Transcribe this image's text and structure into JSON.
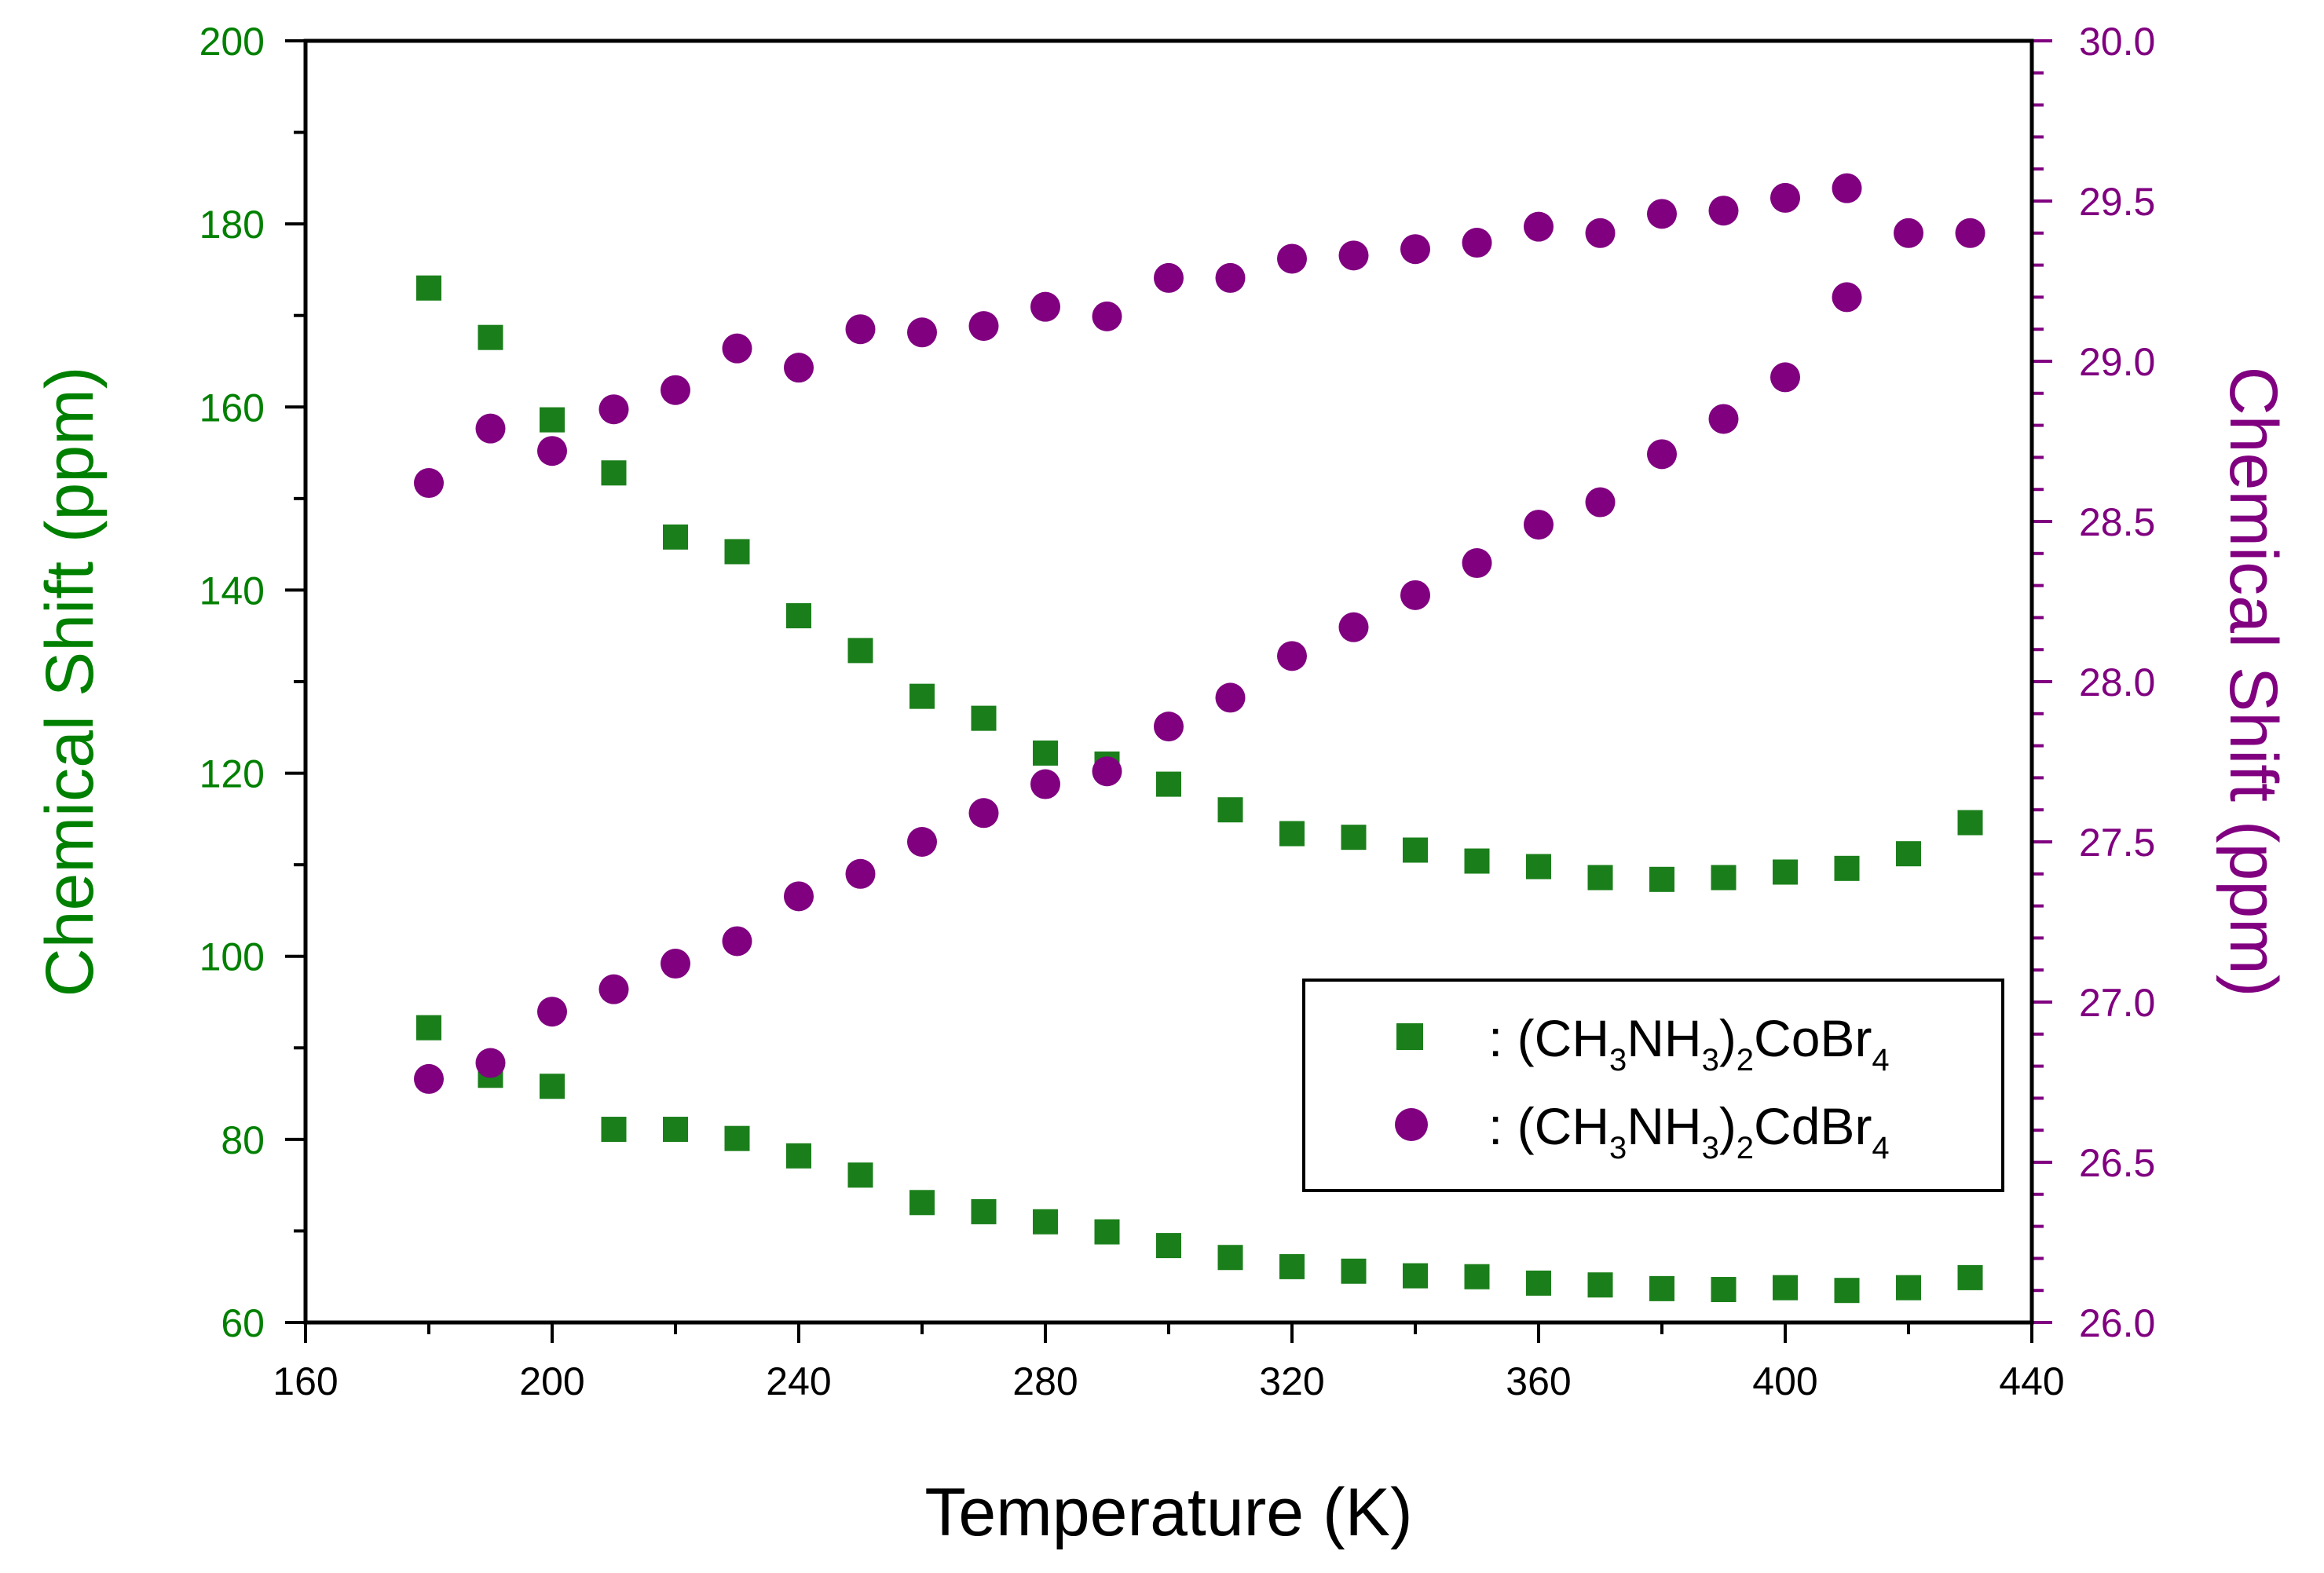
{
  "colors": {
    "left_axis": "#008000",
    "right_axis": "#800080",
    "co_series": "#1a7f1a",
    "cd_series": "#800080",
    "frame": "#000000"
  },
  "chart_data": {
    "type": "scatter",
    "xlabel": "Temperature (K)",
    "ylabel_left": "Chemical Shift (ppm)",
    "ylabel_right": "Chemical Shift (ppm)",
    "xlim": [
      160,
      440
    ],
    "ylim_left": [
      60,
      200
    ],
    "ylim_right": [
      26.0,
      30.0
    ],
    "x_ticks": [
      "160",
      "200",
      "240",
      "280",
      "320",
      "360",
      "400",
      "440"
    ],
    "y_left_ticks": [
      "60",
      "80",
      "100",
      "120",
      "140",
      "160",
      "180",
      "200"
    ],
    "y_right_ticks": [
      "26.0",
      "26.5",
      "27.0",
      "27.5",
      "28.0",
      "28.5",
      "29.0",
      "29.5",
      "30.0"
    ],
    "legend": {
      "position": "lower-right",
      "entries": [
        {
          "prefix": ": (CH",
          "sub1": "3",
          "mid": "NH",
          "sub2": "3",
          "close": ")",
          "sub3": "2",
          "tail": "CoBr",
          "sub4": "4",
          "marker": "square"
        },
        {
          "prefix": ": (CH",
          "sub1": "3",
          "mid": "NH",
          "sub2": "3",
          "close": ")",
          "sub3": "2",
          "tail": "CdBr",
          "sub4": "4",
          "marker": "circle"
        }
      ]
    },
    "series": [
      {
        "name": "(CH3NH3)2CoBr4 upper",
        "axis": "left",
        "marker": "square",
        "x": [
          180,
          190,
          200,
          210,
          220,
          230,
          240,
          250,
          260,
          270,
          280,
          290,
          300,
          310,
          320,
          330,
          340,
          350,
          360,
          370,
          380,
          390,
          400,
          410,
          420,
          430
        ],
        "y": [
          173,
          167.6,
          158.6,
          152.8,
          145.8,
          144.2,
          137.2,
          133.4,
          128.4,
          126,
          122.2,
          121,
          118.8,
          116,
          113.4,
          113,
          111.6,
          110.4,
          109.8,
          108.6,
          108.4,
          108.6,
          109.2,
          109.6,
          111.2,
          114.6
        ]
      },
      {
        "name": "(CH3NH3)2CoBr4 lower",
        "axis": "left",
        "marker": "square",
        "x": [
          180,
          190,
          200,
          210,
          220,
          230,
          240,
          250,
          260,
          270,
          280,
          290,
          300,
          310,
          320,
          330,
          340,
          350,
          360,
          370,
          380,
          390,
          400,
          410,
          420,
          430
        ],
        "y": [
          92.2,
          87,
          85.8,
          81.1,
          81.1,
          80.1,
          78.2,
          76.1,
          73.1,
          72.1,
          71,
          69.9,
          68.4,
          67.1,
          66.1,
          65.6,
          65.1,
          65,
          64.3,
          64.1,
          63.7,
          63.6,
          63.8,
          63.5,
          63.8,
          64.9
        ]
      },
      {
        "name": "(CH3NH3)2CdBr4 upper",
        "axis": "right",
        "marker": "circle",
        "x": [
          180,
          190,
          200,
          210,
          220,
          230,
          240,
          250,
          260,
          270,
          280,
          290,
          300,
          310,
          320,
          330,
          340,
          350,
          360,
          370,
          380,
          390,
          400,
          410,
          420,
          430
        ],
        "y": [
          28.62,
          28.79,
          28.72,
          28.85,
          28.91,
          29.04,
          28.98,
          29.1,
          29.09,
          29.11,
          29.17,
          29.14,
          29.26,
          29.26,
          29.32,
          29.33,
          29.35,
          29.37,
          29.42,
          29.4,
          29.46,
          29.47,
          29.51,
          29.54,
          29.4,
          29.4
        ]
      },
      {
        "name": "(CH3NH3)2CdBr4 lower",
        "axis": "right",
        "marker": "circle",
        "x": [
          180,
          190,
          200,
          210,
          220,
          230,
          240,
          250,
          260,
          270,
          280,
          290,
          300,
          310,
          320,
          330,
          340,
          350,
          360,
          370,
          380,
          390,
          400,
          410
        ],
        "y": [
          26.76,
          26.81,
          26.97,
          27.04,
          27.12,
          27.19,
          27.33,
          27.4,
          27.5,
          27.59,
          27.68,
          27.72,
          27.86,
          27.95,
          28.08,
          28.17,
          28.27,
          28.37,
          28.49,
          28.56,
          28.71,
          28.82,
          28.95,
          29.2
        ]
      }
    ]
  }
}
